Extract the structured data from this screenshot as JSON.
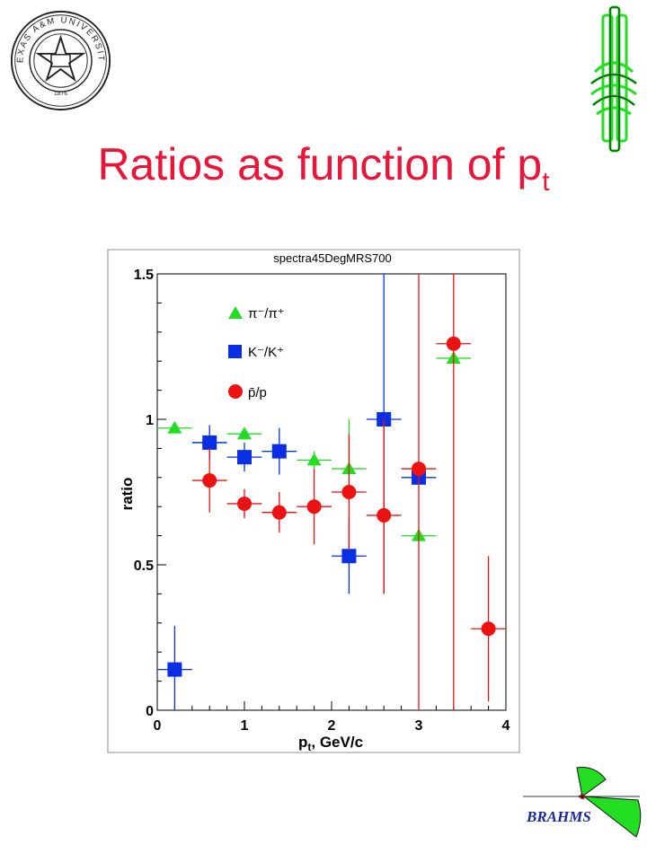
{
  "slide": {
    "title_main": "Ratios as function of p",
    "title_sub": "t",
    "seal_text": "TEXAS A&M UNIVERSITY",
    "seal_year": "1876",
    "brahms_label": "BRAHMS"
  },
  "colors": {
    "title": "#e8163a",
    "pi_ratio": "#22dd22",
    "k_ratio": "#0a2ee6",
    "p_ratio": "#ee1111",
    "brahms_text": "#1a2a9a",
    "logo_green": "#22dd22"
  },
  "chart_data": {
    "type": "scatter",
    "title": "spectra45DegMRS700",
    "xlabel": "p_t, GeV/c",
    "ylabel": "ratio",
    "xlim": [
      0,
      4
    ],
    "ylim": [
      0,
      1.5
    ],
    "x_ticks": [
      "0",
      "1",
      "2",
      "3",
      "4"
    ],
    "y_ticks": [
      "0",
      "0.5",
      "1",
      "1.5"
    ],
    "grid": false,
    "legend_placement": "top-left",
    "series": [
      {
        "name": "π⁻/π⁺",
        "marker": "triangle",
        "color": "#22dd22",
        "points": [
          {
            "x": 0.2,
            "y": 0.97,
            "xerr": 0.2,
            "yerr_lo": 0.01,
            "yerr_hi": 0.01
          },
          {
            "x": 0.6,
            "y": 0.92,
            "xerr": 0.2,
            "yerr_lo": 0.01,
            "yerr_hi": 0.01
          },
          {
            "x": 1.0,
            "y": 0.95,
            "xerr": 0.2,
            "yerr_lo": 0.02,
            "yerr_hi": 0.02
          },
          {
            "x": 1.4,
            "y": 0.89,
            "xerr": 0.2,
            "yerr_lo": 0.02,
            "yerr_hi": 0.02
          },
          {
            "x": 1.8,
            "y": 0.86,
            "xerr": 0.2,
            "yerr_lo": 0.03,
            "yerr_hi": 0.03
          },
          {
            "x": 2.2,
            "y": 0.83,
            "xerr": 0.2,
            "yerr_lo": 0.04,
            "yerr_hi": 0.17
          },
          {
            "x": 3.0,
            "y": 0.6,
            "xerr": 0.2,
            "yerr_lo": 0.0,
            "yerr_hi": 0.0
          },
          {
            "x": 3.4,
            "y": 1.21,
            "xerr": 0.2,
            "yerr_lo": 0.0,
            "yerr_hi": 0.0
          }
        ]
      },
      {
        "name": "K⁻/K⁺",
        "marker": "square",
        "color": "#0a2ee6",
        "points": [
          {
            "x": 0.2,
            "y": 0.14,
            "xerr": 0.2,
            "yerr_lo": 0.14,
            "yerr_hi": 0.15
          },
          {
            "x": 0.6,
            "y": 0.92,
            "xerr": 0.2,
            "yerr_lo": 0.06,
            "yerr_hi": 0.06
          },
          {
            "x": 1.0,
            "y": 0.87,
            "xerr": 0.2,
            "yerr_lo": 0.05,
            "yerr_hi": 0.05
          },
          {
            "x": 1.4,
            "y": 0.89,
            "xerr": 0.2,
            "yerr_lo": 0.08,
            "yerr_hi": 0.08
          },
          {
            "x": 2.2,
            "y": 0.53,
            "xerr": 0.2,
            "yerr_lo": 0.13,
            "yerr_hi": 0.13
          },
          {
            "x": 2.6,
            "y": 1.0,
            "xerr": 0.2,
            "yerr_lo": 0.6,
            "yerr_hi": 0.5
          },
          {
            "x": 3.0,
            "y": 0.8,
            "xerr": 0.2,
            "yerr_lo": 0.0,
            "yerr_hi": 0.0
          }
        ]
      },
      {
        "name": "p̄/p",
        "marker": "circle",
        "color": "#ee1111",
        "points": [
          {
            "x": 0.6,
            "y": 0.79,
            "xerr": 0.2,
            "yerr_lo": 0.11,
            "yerr_hi": 0.11
          },
          {
            "x": 1.0,
            "y": 0.71,
            "xerr": 0.2,
            "yerr_lo": 0.05,
            "yerr_hi": 0.05
          },
          {
            "x": 1.4,
            "y": 0.68,
            "xerr": 0.2,
            "yerr_lo": 0.07,
            "yerr_hi": 0.07
          },
          {
            "x": 1.8,
            "y": 0.7,
            "xerr": 0.2,
            "yerr_lo": 0.13,
            "yerr_hi": 0.13
          },
          {
            "x": 2.2,
            "y": 0.75,
            "xerr": 0.2,
            "yerr_lo": 0.2,
            "yerr_hi": 0.2
          },
          {
            "x": 2.6,
            "y": 0.67,
            "xerr": 0.2,
            "yerr_lo": 0.27,
            "yerr_hi": 0.33
          },
          {
            "x": 3.0,
            "y": 0.83,
            "xerr": 0.2,
            "yerr_lo": 0.83,
            "yerr_hi": 0.67
          },
          {
            "x": 3.4,
            "y": 1.26,
            "xerr": 0.2,
            "yerr_lo": 1.26,
            "yerr_hi": 0.24
          },
          {
            "x": 3.8,
            "y": 0.28,
            "xerr": 0.2,
            "yerr_lo": 0.25,
            "yerr_hi": 0.25
          }
        ]
      }
    ]
  }
}
